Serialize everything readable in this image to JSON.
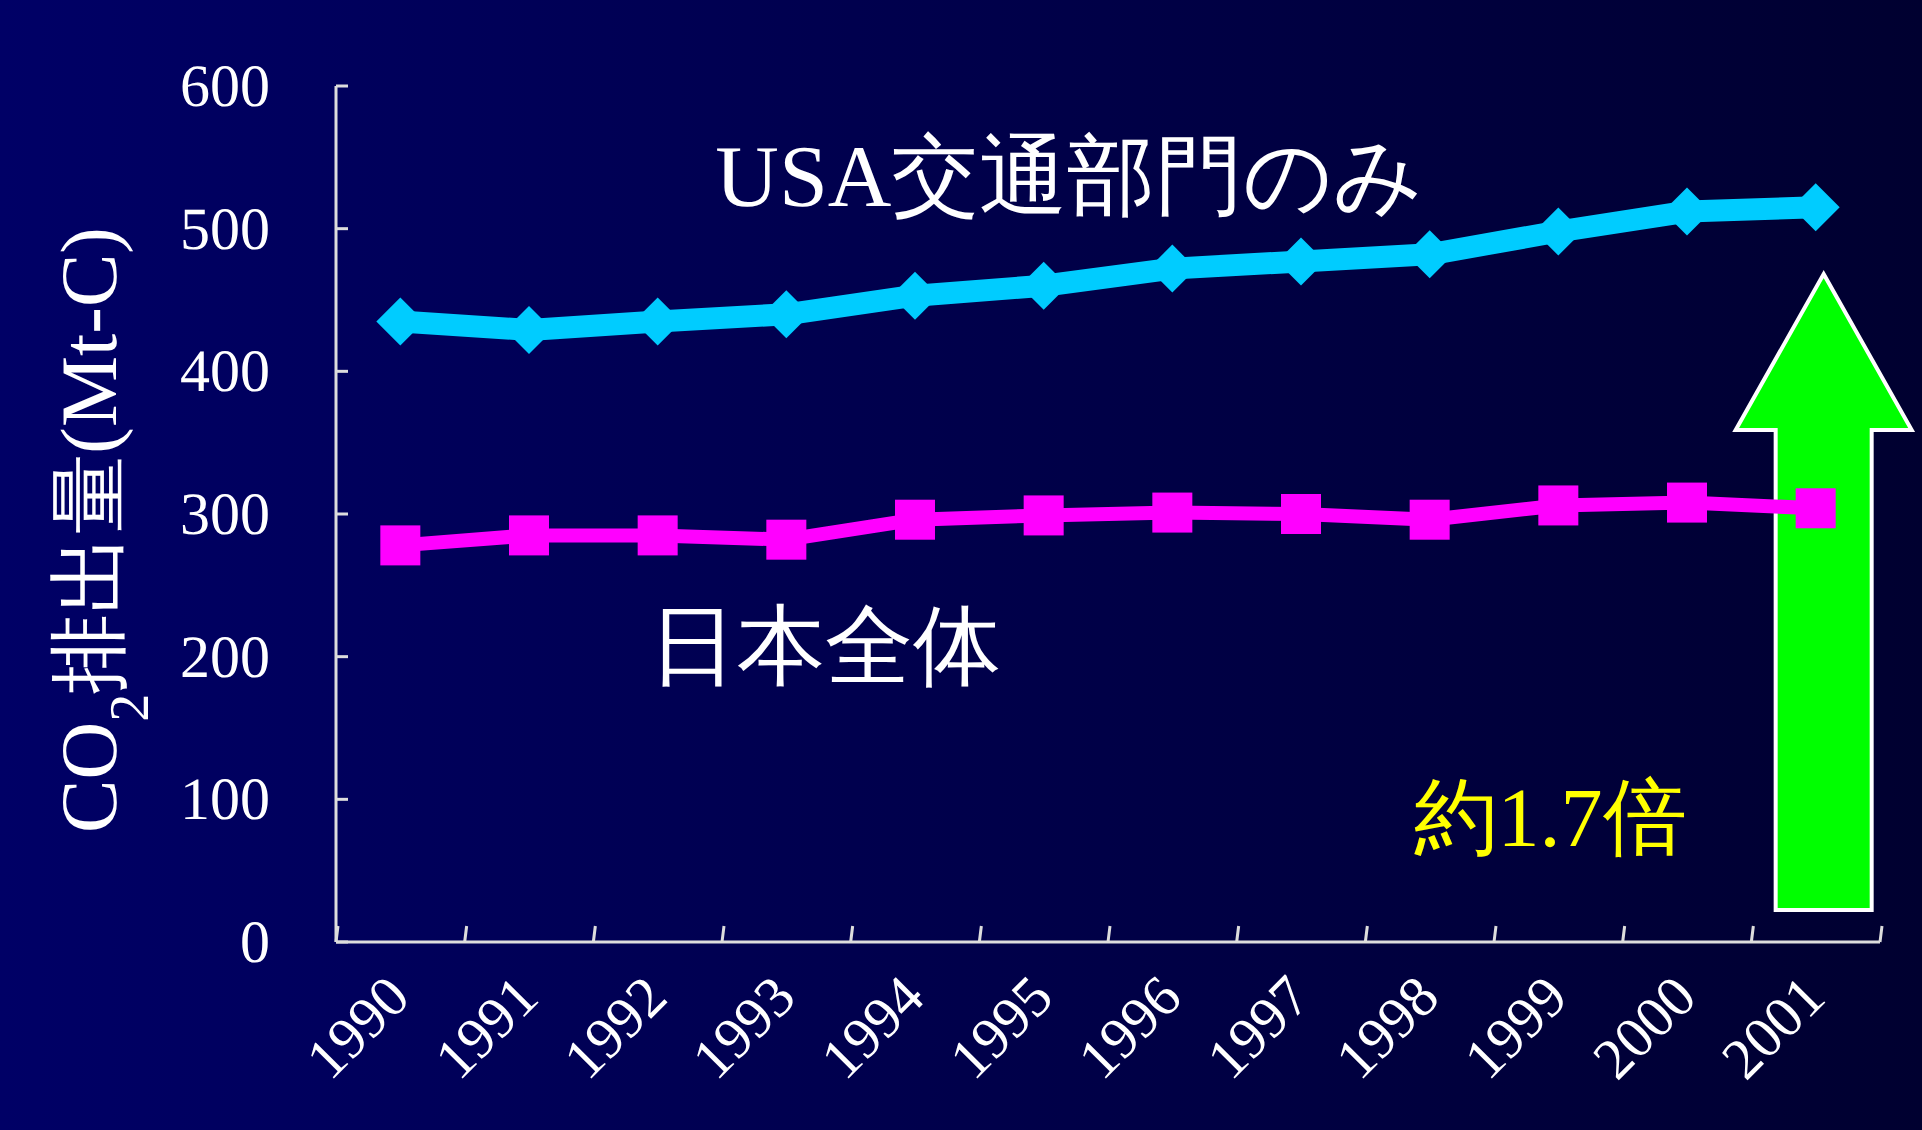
{
  "chart_data": {
    "type": "line",
    "ylabel": "CO$_{2}$排出量(Mt-C)",
    "categories": [
      "1990",
      "1991",
      "1992",
      "1993",
      "1994",
      "1995",
      "1996",
      "1997",
      "1998",
      "1999",
      "2000",
      "2001"
    ],
    "ylim": [
      0,
      600
    ],
    "yticks": [
      0,
      100,
      200,
      300,
      400,
      500,
      600
    ],
    "annotations": [
      "約1.7倍"
    ],
    "series": [
      {
        "name": "USA交通部門のみ",
        "color": "#00ccff",
        "marker": "diamond",
        "values": [
          435,
          429,
          435,
          440,
          453,
          460,
          472,
          477,
          482,
          498,
          512,
          515
        ]
      },
      {
        "name": "日本全体",
        "color": "#ff00ff",
        "marker": "square",
        "values": [
          278,
          285,
          285,
          282,
          296,
          299,
          301,
          300,
          296,
          306,
          308,
          304
        ]
      }
    ]
  }
}
